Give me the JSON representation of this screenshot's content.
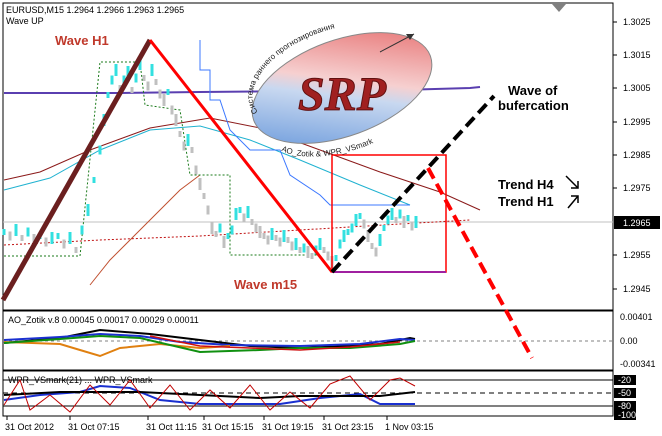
{
  "header": {
    "line1": "EURUSD,M15  1.2964 1.2966 1.2963 1.2965",
    "line2": "Wave UP"
  },
  "price_axis": {
    "ticks": [
      "1.3025",
      "1.3015",
      "1.3005",
      "1.2995",
      "1.2985",
      "1.2975",
      "1.2955",
      "1.2945"
    ],
    "current": "1.2965"
  },
  "annotations": {
    "wave_h1": "Wave H1",
    "wave_m15": "Wave m15",
    "bifurcation_line1": "Wave of",
    "bifurcation_line2": "bufercation",
    "trend_h4": "Trend H4",
    "trend_h1": "Trend H1"
  },
  "logo": {
    "text": "SRP",
    "arc_top": "Система раннего прогнозирования",
    "arc_bottom": "AO_Zotik & WPR_VSmark"
  },
  "ao_panel": {
    "label": "AO_Zotik v.8 0.00045 0.00017 0.00029 0.00011",
    "ticks": [
      "0.00401",
      "0.00",
      "-0.00341"
    ]
  },
  "wpr_panel": {
    "label": "WPR_VSmark(21) ... WPR_VSmark",
    "ticks": [
      "-20",
      "-50",
      "-80",
      "-100"
    ]
  },
  "time_axis": {
    "ticks": [
      "31 Oct 2012",
      "31 Oct 07:15",
      "31 Oct 11:15",
      "31 Oct 15:15",
      "31 Oct 19:15",
      "31 Oct 23:15",
      "1 Nov 03:15"
    ]
  },
  "colors": {
    "background": "#ffffff",
    "candles": "#33e0e0",
    "candles_down": "#c0c0c0",
    "wave_h1": "#6b1f1f",
    "wave_m15": "#ff0000",
    "bifurcation": "#000000",
    "forecast": "#ff0000",
    "label_red": "#c0392b"
  }
}
